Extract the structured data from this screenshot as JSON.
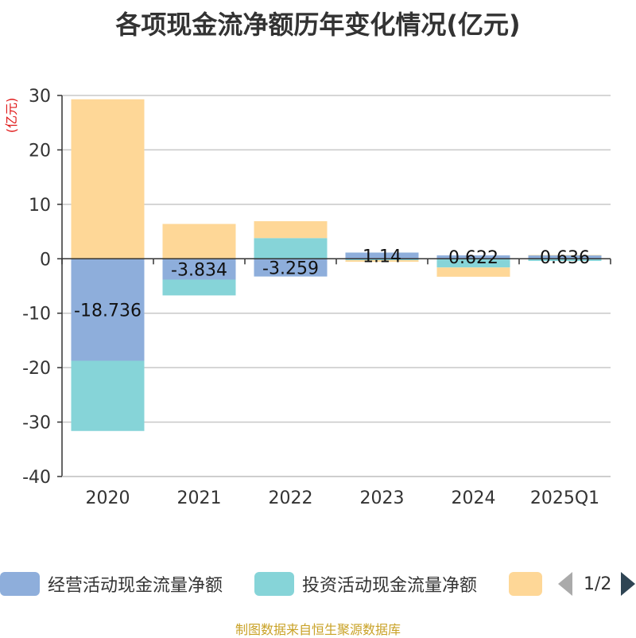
{
  "title": "各项现金流净额历年变化情况(亿元)",
  "source": "制图数据来自恒生聚源数据库",
  "pager": {
    "text": "1/2"
  },
  "chart_data": {
    "type": "bar",
    "stacked": true,
    "unit_label": "(亿元)",
    "categories": [
      "2020",
      "2021",
      "2022",
      "2023",
      "2024",
      "2025Q1"
    ],
    "ylim": [
      -40,
      30
    ],
    "yticks": [
      30,
      20,
      10,
      0,
      -10,
      -20,
      -30,
      -40
    ],
    "grid": true,
    "legend_position": "bottom",
    "series": [
      {
        "name": "经营活动现金流量净额",
        "color": "#8eaedb",
        "values": [
          -18.736,
          -3.834,
          -3.259,
          1.14,
          0.622,
          0.636
        ]
      },
      {
        "name": "投资活动现金流量净额",
        "color": "#86d4d8",
        "values": [
          -12.9,
          -2.9,
          3.8,
          -0.25,
          -1.6,
          -0.4
        ]
      },
      {
        "name": "",
        "color": "#fed797",
        "values": [
          29.3,
          6.4,
          3.1,
          -0.3,
          -1.7,
          0.05
        ]
      }
    ],
    "data_labels": [
      -18.736,
      -3.834,
      -3.259,
      1.14,
      0.622,
      0.636
    ]
  }
}
